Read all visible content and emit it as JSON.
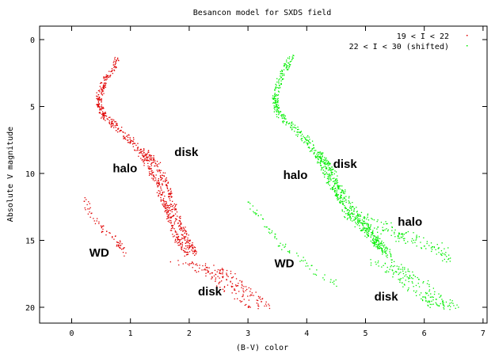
{
  "chart_data": {
    "type": "scatter",
    "title": "Besancon model for SXDS field",
    "xlabel": "(B-V) color",
    "ylabel": "Absolute V magnitude",
    "xlim": [
      -0.6,
      7
    ],
    "ylim": [
      21,
      -1
    ],
    "y_inverted": true,
    "xticks": [
      "0",
      "1",
      "2",
      "3",
      "4",
      "5",
      "6",
      "7"
    ],
    "yticks": [
      "0",
      "5",
      "10",
      "15",
      "20"
    ],
    "legend_position": "top-right",
    "grid": false,
    "series": [
      {
        "name": "19 < I < 22",
        "color": "#e00000",
        "branches": [
          {
            "kind": "main-sequence",
            "points": [
              [
                0.78,
                1.5
              ],
              [
                0.55,
                3.2
              ],
              [
                0.45,
                4.3
              ],
              [
                0.5,
                5.5
              ],
              [
                0.75,
                6.5
              ],
              [
                1.05,
                7.7
              ],
              [
                1.25,
                9.0
              ],
              [
                1.45,
                10.7
              ],
              [
                1.6,
                12.5
              ],
              [
                1.75,
                14.5
              ],
              [
                1.95,
                16.0
              ]
            ]
          },
          {
            "kind": "disk-branch",
            "points": [
              [
                1.2,
                8.2
              ],
              [
                1.45,
                9.3
              ],
              [
                1.6,
                10.8
              ],
              [
                1.75,
                12.8
              ],
              [
                1.95,
                15.0
              ],
              [
                2.1,
                16.0
              ]
            ]
          },
          {
            "kind": "disk-bands",
            "points": [
              [
                1.8,
                16.5
              ],
              [
                2.2,
                17.0
              ],
              [
                2.5,
                17.5
              ],
              [
                2.7,
                18.2
              ],
              [
                2.9,
                19.0
              ],
              [
                3.2,
                20.0
              ]
            ]
          },
          {
            "kind": "white-dwarf",
            "points": [
              [
                0.2,
                12.0
              ],
              [
                0.35,
                13.2
              ],
              [
                0.55,
                14.2
              ],
              [
                0.8,
                15.2
              ],
              [
                0.9,
                16.0
              ]
            ]
          }
        ]
      },
      {
        "name": "22 < I < 30 (shifted)",
        "color": "#00ee00",
        "branches": [
          {
            "kind": "main-sequence",
            "points": [
              [
                3.75,
                1.2
              ],
              [
                3.55,
                2.8
              ],
              [
                3.45,
                4.3
              ],
              [
                3.5,
                5.5
              ],
              [
                3.8,
                6.6
              ],
              [
                4.05,
                7.8
              ],
              [
                4.25,
                9.2
              ],
              [
                4.4,
                10.7
              ],
              [
                4.6,
                12.2
              ],
              [
                4.85,
                13.7
              ],
              [
                5.1,
                14.8
              ],
              [
                5.3,
                15.8
              ]
            ]
          },
          {
            "kind": "disk-branch",
            "points": [
              [
                4.2,
                8.4
              ],
              [
                4.4,
                9.6
              ],
              [
                4.55,
                11.0
              ],
              [
                4.75,
                12.5
              ],
              [
                5.0,
                13.8
              ],
              [
                5.2,
                15.0
              ],
              [
                5.4,
                16.0
              ]
            ]
          },
          {
            "kind": "halo-tail",
            "points": [
              [
                4.6,
                12.8
              ],
              [
                5.0,
                13.5
              ],
              [
                5.4,
                14.2
              ],
              [
                5.8,
                14.9
              ],
              [
                6.2,
                15.6
              ],
              [
                6.4,
                16.2
              ]
            ]
          },
          {
            "kind": "disk-bands",
            "points": [
              [
                5.2,
                16.5
              ],
              [
                5.5,
                17.2
              ],
              [
                5.8,
                18.0
              ],
              [
                6.0,
                18.8
              ],
              [
                6.2,
                19.5
              ],
              [
                6.4,
                20.0
              ]
            ]
          },
          {
            "kind": "white-dwarf",
            "points": [
              [
                3.0,
                12.0
              ],
              [
                3.3,
                14.0
              ],
              [
                3.6,
                15.5
              ],
              [
                4.0,
                16.6
              ],
              [
                4.2,
                17.6
              ],
              [
                4.5,
                18.2
              ]
            ]
          }
        ]
      }
    ],
    "annotations": [
      {
        "text": "halo",
        "x": 0.7,
        "y": 9.9
      },
      {
        "text": "disk",
        "x": 1.75,
        "y": 8.7
      },
      {
        "text": "WD",
        "x": 0.3,
        "y": 16.2
      },
      {
        "text": "disk",
        "x": 2.15,
        "y": 19.1
      },
      {
        "text": "halo",
        "x": 3.6,
        "y": 10.4
      },
      {
        "text": "disk",
        "x": 4.45,
        "y": 9.6
      },
      {
        "text": "halo",
        "x": 5.55,
        "y": 13.9
      },
      {
        "text": "WD",
        "x": 3.45,
        "y": 17.0
      },
      {
        "text": "disk",
        "x": 5.15,
        "y": 19.5
      }
    ]
  }
}
